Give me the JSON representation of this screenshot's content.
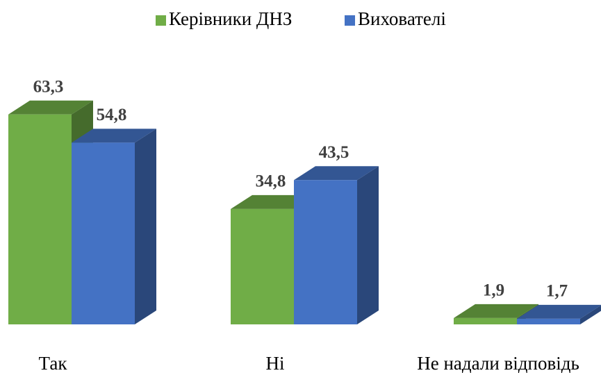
{
  "chart_data": {
    "type": "bar3d",
    "categories": [
      "Так",
      "Ні",
      "Не надали відповідь"
    ],
    "series": [
      {
        "name": "Керівники ДНЗ",
        "color": "#70ad47",
        "values": [
          63.3,
          34.8,
          1.9
        ],
        "value_labels": [
          "63,3",
          "34,8",
          "1,9"
        ]
      },
      {
        "name": "Вихователі",
        "color": "#4472c4",
        "values": [
          54.8,
          43.5,
          1.7
        ],
        "value_labels": [
          "54,8",
          "43,5",
          "1,7"
        ]
      }
    ],
    "legend": "top"
  }
}
